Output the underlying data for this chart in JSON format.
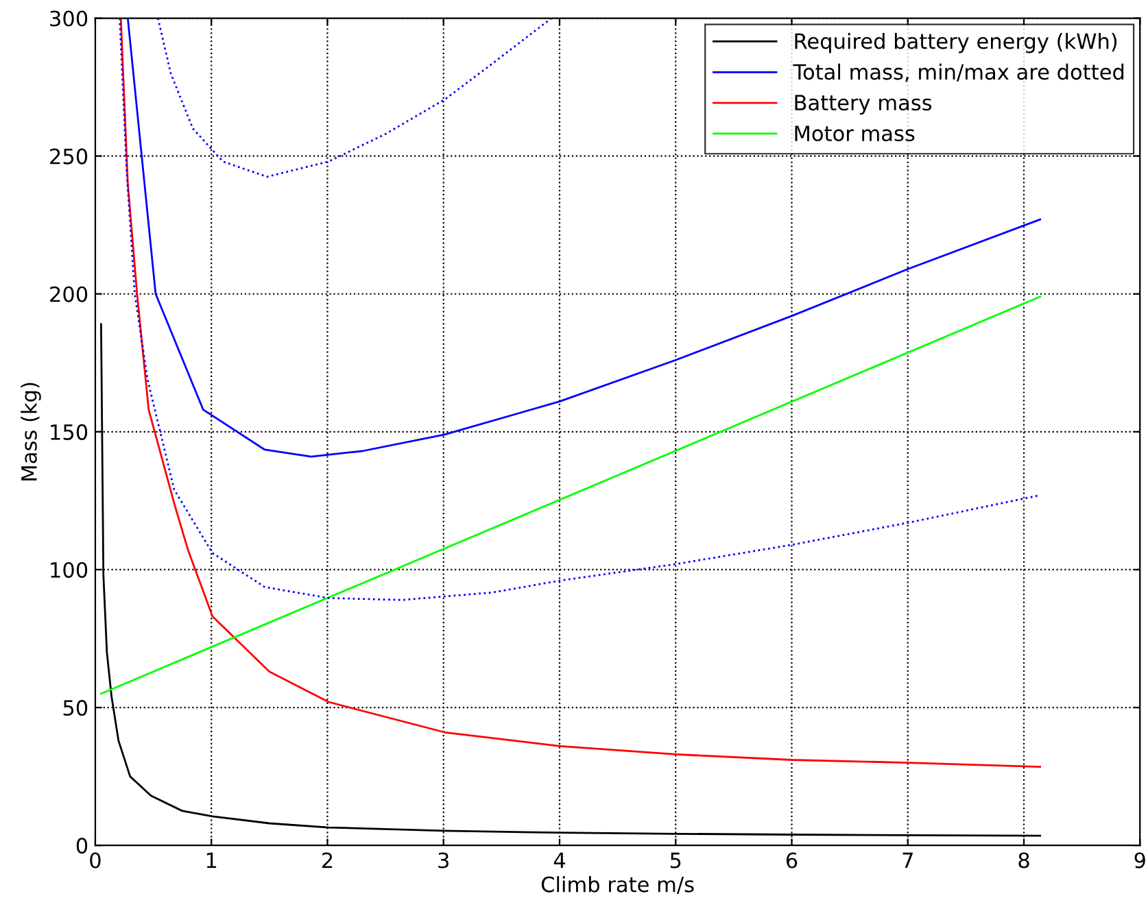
{
  "chart_data": {
    "type": "line",
    "xlabel": "Climb rate m/s",
    "ylabel": "Mass (kg)",
    "xlim": [
      0,
      9
    ],
    "ylim": [
      0,
      300
    ],
    "xticks": [
      0,
      1,
      2,
      3,
      4,
      5,
      6,
      7,
      8,
      9
    ],
    "yticks": [
      0,
      50,
      100,
      150,
      200,
      250,
      300
    ],
    "grid": true,
    "legend": "top right",
    "marker": "none",
    "series": [
      {
        "name": "Required battery energy (kWh)",
        "color": "#000000",
        "line_style": "solid",
        "x": [
          0.05,
          0.07,
          0.1,
          0.14,
          0.2,
          0.3,
          0.48,
          0.75,
          1.01,
          1.5,
          2.01,
          3,
          4,
          5,
          6,
          7,
          8.14
        ],
        "values": [
          189,
          98,
          70,
          54,
          38,
          25,
          18,
          12.5,
          10.5,
          8,
          6.5,
          5.3,
          4.6,
          4.2,
          3.9,
          3.7,
          3.5
        ]
      },
      {
        "name": "Total mass, min/max are dotted",
        "color": "#0000ff",
        "line_style": "solid",
        "x": [
          0.28,
          0.52,
          0.93,
          1.46,
          1.86,
          2.3,
          3.01,
          4,
          5,
          6,
          7,
          8.14
        ],
        "values": [
          300,
          200,
          158,
          143.5,
          141,
          143,
          149,
          161,
          176,
          192,
          209,
          227
        ]
      },
      {
        "name": "Battery mass",
        "color": "#ff0000",
        "line_style": "solid",
        "x": [
          0.22,
          0.28,
          0.36,
          0.46,
          0.68,
          0.8,
          1.01,
          1.5,
          2.01,
          3.01,
          4,
          5,
          6,
          7,
          8.14
        ],
        "values": [
          300,
          240,
          200,
          158,
          124,
          107,
          83,
          63,
          52,
          41,
          36,
          33,
          31,
          30,
          28.5
        ]
      },
      {
        "name": "Motor mass",
        "color": "#00ff00",
        "line_style": "solid",
        "x": [
          0.05,
          8.14
        ],
        "values": [
          55,
          199
        ]
      },
      {
        "color": "#0000ff",
        "line_style": "dotted",
        "x": [
          0.54,
          0.65,
          0.84,
          1.1,
          1.48,
          2.01,
          2.5,
          3.01,
          3.42,
          3.93
        ],
        "values": [
          300,
          280,
          260,
          248,
          242.5,
          248,
          258,
          270.5,
          283.5,
          300
        ]
      },
      {
        "color": "#0000ff",
        "line_style": "dotted",
        "x": [
          0.21,
          0.27,
          0.34,
          0.45,
          0.68,
          1.01,
          1.46,
          2.01,
          2.64,
          3.42,
          4,
          5,
          6,
          7,
          8.14
        ],
        "values": [
          300,
          245,
          200,
          169,
          129,
          106,
          93.7,
          89.7,
          89,
          91.7,
          96,
          102,
          109,
          117,
          127
        ]
      }
    ]
  }
}
